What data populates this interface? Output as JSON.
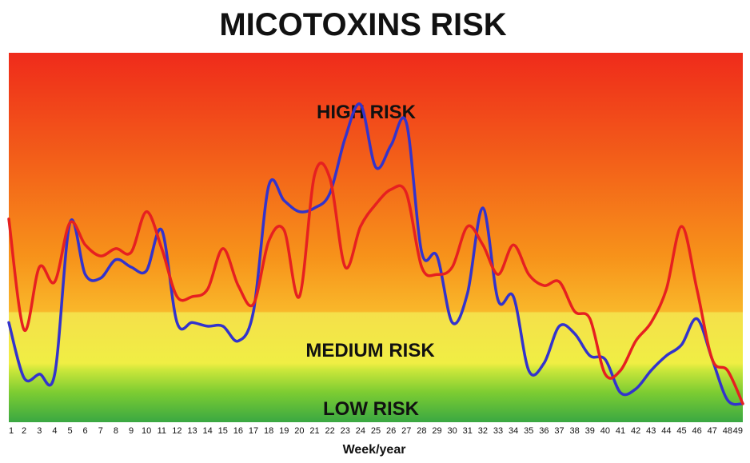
{
  "chart_data": {
    "type": "line",
    "title": "MICOTOXINS RISK",
    "xlabel": "Week/year",
    "ylabel": "",
    "categories": [
      1,
      2,
      3,
      4,
      5,
      6,
      7,
      8,
      9,
      10,
      11,
      12,
      13,
      14,
      15,
      16,
      17,
      18,
      19,
      20,
      21,
      22,
      23,
      24,
      25,
      26,
      27,
      28,
      29,
      30,
      31,
      32,
      33,
      34,
      35,
      36,
      37,
      38,
      39,
      40,
      41,
      42,
      43,
      44,
      45,
      46,
      47,
      48,
      49
    ],
    "band_labels": {
      "high": "HIGH RISK",
      "medium": "MEDIUM RISK",
      "low": "LOW RISK"
    },
    "ylim": [
      0,
      100
    ],
    "grid": false,
    "series": [
      {
        "color": "#3333cc",
        "values": [
          27,
          12,
          13,
          13,
          54,
          40,
          39,
          44,
          42,
          41,
          52,
          27,
          27,
          26,
          26,
          22,
          30,
          64,
          60,
          57,
          58,
          62,
          77,
          86,
          69,
          75,
          81,
          46,
          45,
          27,
          35,
          58,
          33,
          34,
          14,
          16,
          26,
          24,
          18,
          17,
          8,
          9,
          14,
          18,
          21,
          28,
          17,
          6,
          5
        ]
      },
      {
        "color": "#e62020",
        "values": [
          55,
          25,
          42,
          38,
          54,
          48,
          45,
          47,
          46,
          57,
          47,
          34,
          34,
          36,
          47,
          37,
          32,
          49,
          52,
          34,
          67,
          66,
          42,
          53,
          59,
          63,
          62,
          42,
          40,
          42,
          53,
          48,
          40,
          48,
          40,
          37,
          38,
          30,
          28,
          13,
          14,
          22,
          27,
          36,
          53,
          36,
          17,
          14,
          5
        ]
      }
    ]
  }
}
